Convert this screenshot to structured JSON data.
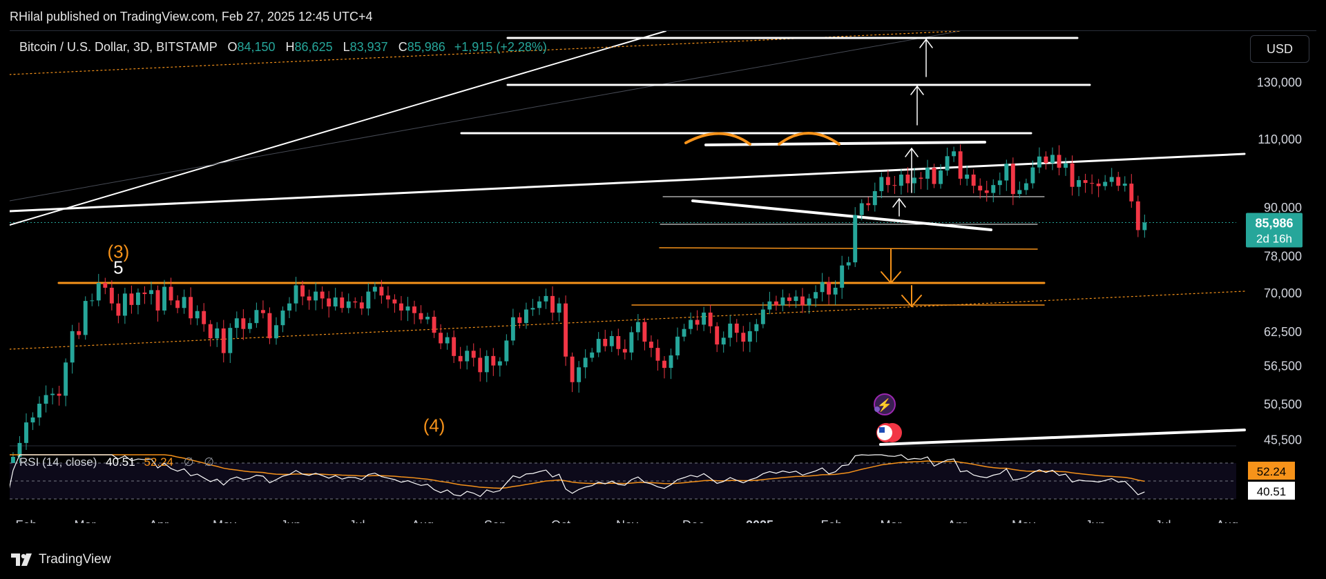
{
  "publisher": "RHilal published on TradingView.com, Feb 27, 2025 12:45 UTC+4",
  "symbol": {
    "name": "Bitcoin / U.S. Dollar, 3D, BITSTAMP",
    "open_label": "O",
    "open": "84,150",
    "high_label": "H",
    "high": "86,625",
    "low_label": "L",
    "low": "83,937",
    "close_label": "C",
    "close": "85,986",
    "change": "+1,915 (+2.28%)"
  },
  "currency_button": "USD",
  "rsi_legend": {
    "label": "RSI (14, close)",
    "rsi": "40.51",
    "ma": "52.24",
    "extra1": "∅",
    "extra2": "∅"
  },
  "brand": "TradingView",
  "colors": {
    "up": "#26a69a",
    "down": "#f23645",
    "orange": "#f7931a",
    "white": "#ffffff",
    "rsi_ma": "#f7931a"
  },
  "chart_data": {
    "type": "candlestick",
    "scale": "log",
    "price_axis_labels": [
      130000,
      110000,
      90000,
      78000,
      70000,
      62500,
      56500,
      50500,
      45500
    ],
    "price_axis_text": [
      "130,000",
      "110,000",
      "90,000",
      "78,000",
      "70,000",
      "62,500",
      "56,500",
      "50,500",
      "45,500"
    ],
    "x_axis_labels": [
      "Feb",
      "Mar",
      "Apr",
      "May",
      "Jun",
      "Jul",
      "Aug",
      "Sep",
      "Oct",
      "Nov",
      "Dec",
      "2025",
      "Feb",
      "Mar",
      "Apr",
      "May",
      "Jun",
      "Jul",
      "Aug"
    ],
    "last_price_label": {
      "price": "85,986",
      "countdown": "2d 16h",
      "value": 85986
    },
    "rsi_labels": {
      "ma": "52.24",
      "rsi": "40.51"
    },
    "rsi_levels": [
      70,
      50,
      30
    ],
    "wave_labels": [
      {
        "text": "(3)",
        "date": "2024-03-14",
        "price": 77500,
        "color": "#f7931a"
      },
      {
        "text": "5",
        "date": "2024-03-14",
        "price": 74000,
        "color": "#ffffff"
      },
      {
        "text": "(4)",
        "date": "2024-08-05",
        "price": 46500,
        "color": "#f7931a"
      }
    ],
    "start_date": "2024-01-17",
    "close_series": [
      42700,
      43000,
      42200,
      43200,
      45000,
      47800,
      48500,
      50500,
      51800,
      52000,
      51700,
      57000,
      62500,
      61800,
      68300,
      68400,
      72000,
      71000,
      67800,
      65400,
      69800,
      67500,
      70000,
      69700,
      70500,
      66400,
      71200,
      68400,
      66900,
      69100,
      64900,
      66300,
      63800,
      61200,
      63000,
      58600,
      63100,
      64900,
      62900,
      64000,
      66500,
      65900,
      61200,
      63600,
      66400,
      67800,
      71500,
      69200,
      68400,
      70200,
      68800,
      67200,
      69000,
      66900,
      68200,
      68000,
      66800,
      70200,
      71200,
      69400,
      68600,
      67800,
      66400,
      67200,
      65900,
      64700,
      65200,
      62200,
      60300,
      61400,
      58100,
      57200,
      59000,
      57800,
      55400,
      58100,
      56500,
      57200,
      60800,
      65100,
      64000,
      66600,
      66900,
      68200,
      69300,
      66000,
      67800,
      58000,
      53800,
      56200,
      57800,
      58700,
      61100,
      59800,
      61600,
      59300,
      58700,
      62300,
      64200,
      60600,
      59500,
      57300,
      56100,
      58200,
      61500,
      62900,
      64600,
      63700,
      66000,
      63400,
      60100,
      61300,
      63900,
      62200,
      60600,
      62500,
      63800,
      66600,
      68200,
      67400,
      69000,
      68300,
      69200,
      67400,
      68800,
      70100,
      72200,
      69600,
      71000,
      75800,
      76500,
      87900,
      91000,
      90500,
      94300,
      98300,
      96000,
      95800,
      99000,
      96500,
      98100,
      97800,
      101000,
      96300,
      100200,
      104500,
      106000,
      97800,
      99000,
      95800,
      94500,
      93800,
      96000,
      97300,
      102200,
      93500,
      94600,
      96500,
      101100,
      104400,
      102400,
      104900,
      101000,
      102300,
      95500,
      97400,
      96600,
      96400,
      95700,
      96900,
      98300,
      95800,
      96400,
      91500,
      84100,
      85986
    ]
  }
}
